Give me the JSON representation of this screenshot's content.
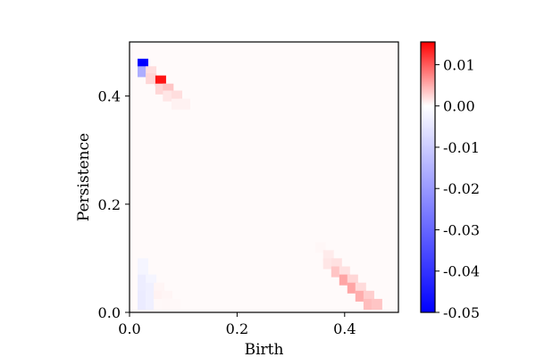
{
  "chart_data": {
    "type": "heatmap",
    "title": "",
    "xlabel": "Birth",
    "ylabel": "Persistence",
    "xlim": [
      0,
      0.5
    ],
    "ylim": [
      0,
      0.5
    ],
    "x_ticks": [
      "0.0",
      "0.2",
      "0.4"
    ],
    "x_tick_values": [
      0.0,
      0.2,
      0.4
    ],
    "y_ticks": [
      "0.0",
      "0.2",
      "0.4"
    ],
    "y_tick_values": [
      0.0,
      0.2,
      0.4
    ],
    "grid": false,
    "cell_size": 0.02,
    "colorbar": {
      "min": -0.05,
      "max": 0.0155,
      "colormap": "bwr",
      "colors": {
        "low": "#0000ff",
        "mid": "#ffffff",
        "high": "#ff0000"
      },
      "ticks": [
        "0.01",
        "0.00",
        "-0.01",
        "-0.02",
        "-0.03",
        "-0.04",
        "-0.05"
      ],
      "tick_values": [
        0.01,
        0.0,
        -0.01,
        -0.02,
        -0.03,
        -0.04,
        -0.05
      ]
    },
    "background_value": 0.0003,
    "cells": [
      {
        "x": 0.025,
        "y": 0.459,
        "value": -0.05
      },
      {
        "x": 0.025,
        "y": 0.445,
        "value": -0.016
      },
      {
        "x": 0.04,
        "y": 0.445,
        "value": 0.002
      },
      {
        "x": 0.04,
        "y": 0.432,
        "value": 0.0025
      },
      {
        "x": 0.058,
        "y": 0.428,
        "value": 0.0143
      },
      {
        "x": 0.058,
        "y": 0.413,
        "value": 0.0025
      },
      {
        "x": 0.072,
        "y": 0.413,
        "value": 0.0035
      },
      {
        "x": 0.072,
        "y": 0.4,
        "value": 0.0015
      },
      {
        "x": 0.088,
        "y": 0.4,
        "value": 0.002
      },
      {
        "x": 0.088,
        "y": 0.385,
        "value": 0.0008
      },
      {
        "x": 0.103,
        "y": 0.385,
        "value": 0.0008
      },
      {
        "x": 0.025,
        "y": 0.09,
        "value": -0.002
      },
      {
        "x": 0.025,
        "y": 0.075,
        "value": -0.002
      },
      {
        "x": 0.025,
        "y": 0.06,
        "value": -0.0035
      },
      {
        "x": 0.025,
        "y": 0.045,
        "value": -0.0035
      },
      {
        "x": 0.025,
        "y": 0.03,
        "value": -0.004
      },
      {
        "x": 0.025,
        "y": 0.015,
        "value": -0.004
      },
      {
        "x": 0.04,
        "y": 0.06,
        "value": -0.002
      },
      {
        "x": 0.04,
        "y": 0.045,
        "value": -0.003
      },
      {
        "x": 0.04,
        "y": 0.03,
        "value": -0.003
      },
      {
        "x": 0.04,
        "y": 0.015,
        "value": -0.003
      },
      {
        "x": 0.055,
        "y": 0.045,
        "value": 0.0006
      },
      {
        "x": 0.055,
        "y": 0.03,
        "value": 0.0008
      },
      {
        "x": 0.055,
        "y": 0.015,
        "value": 0.0004
      },
      {
        "x": 0.07,
        "y": 0.03,
        "value": 0.0006
      },
      {
        "x": 0.07,
        "y": 0.015,
        "value": 0.0005
      },
      {
        "x": 0.085,
        "y": 0.015,
        "value": 0.0004
      },
      {
        "x": 0.355,
        "y": 0.12,
        "value": 0.0005
      },
      {
        "x": 0.37,
        "y": 0.105,
        "value": 0.0012
      },
      {
        "x": 0.37,
        "y": 0.09,
        "value": 0.0015
      },
      {
        "x": 0.385,
        "y": 0.09,
        "value": 0.0018
      },
      {
        "x": 0.385,
        "y": 0.075,
        "value": 0.0035
      },
      {
        "x": 0.4,
        "y": 0.075,
        "value": 0.0018
      },
      {
        "x": 0.4,
        "y": 0.06,
        "value": 0.0055
      },
      {
        "x": 0.415,
        "y": 0.06,
        "value": 0.0025
      },
      {
        "x": 0.415,
        "y": 0.045,
        "value": 0.0055
      },
      {
        "x": 0.43,
        "y": 0.045,
        "value": 0.0022
      },
      {
        "x": 0.43,
        "y": 0.03,
        "value": 0.005
      },
      {
        "x": 0.445,
        "y": 0.03,
        "value": 0.003
      },
      {
        "x": 0.445,
        "y": 0.015,
        "value": 0.004
      },
      {
        "x": 0.46,
        "y": 0.015,
        "value": 0.0035
      }
    ]
  }
}
